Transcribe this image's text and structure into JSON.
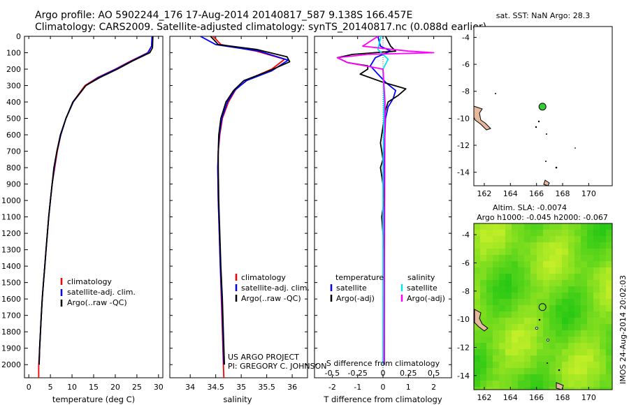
{
  "figure": {
    "title_line1": "Argo profile: AO 5902244_176 17-Aug-2014 20140817_587 9.138S 166.457E",
    "title_line2": "Climatology: CARS2009. Satellite-adjusted climatology: synTS_20140817.nc (0.088d earlier)",
    "credit_line1": "US ARGO PROJECT",
    "credit_line2": "PI: GREGORY C. JOHNSON",
    "imos_stamp": "IMOS 24-Aug-2014 20:02:03"
  },
  "colors": {
    "climatology": "#ff0000",
    "satellite": "#0000ff",
    "argo": "#000000",
    "satellite_s": "#00e5ee",
    "argo_s": "#ff00ff",
    "land": "#e6b89c",
    "argo_marker": "#33cc33"
  },
  "chart_data": [
    {
      "id": "temperature",
      "type": "line",
      "xlabel": "temperature (deg C)",
      "ylabel": "",
      "xlim": [
        -1,
        31
      ],
      "ylim": [
        2080,
        0
      ],
      "y_inverted": true,
      "xticks": [
        "0",
        "5",
        "10",
        "15",
        "20",
        "25",
        "30"
      ],
      "yticks": [
        "0",
        "100",
        "200",
        "300",
        "400",
        "500",
        "600",
        "700",
        "800",
        "900",
        "1000",
        "1100",
        "1200",
        "1300",
        "1400",
        "1500",
        "1600",
        "1700",
        "1800",
        "1900",
        "2000"
      ],
      "legend": [
        "climatology",
        "satellite-adj. clim.",
        "Argo(..raw -QC)"
      ],
      "series": [
        {
          "name": "climatology",
          "color": "red",
          "points": [
            [
              28.6,
              0
            ],
            [
              28.4,
              60
            ],
            [
              27.5,
              100
            ],
            [
              23.6,
              150
            ],
            [
              20,
              200
            ],
            [
              16,
              250
            ],
            [
              13,
              300
            ],
            [
              10.2,
              400
            ],
            [
              8.6,
              500
            ],
            [
              7.4,
              600
            ],
            [
              6.6,
              700
            ],
            [
              6,
              800
            ],
            [
              5.4,
              900
            ],
            [
              5,
              1000
            ],
            [
              4.6,
              1100
            ],
            [
              4.3,
              1200
            ],
            [
              4,
              1300
            ],
            [
              3.7,
              1400
            ],
            [
              3.4,
              1500
            ],
            [
              3.1,
              1600
            ],
            [
              2.9,
              1700
            ],
            [
              2.7,
              1800
            ],
            [
              2.5,
              1900
            ],
            [
              2.3,
              2000
            ],
            [
              2.3,
              2080
            ]
          ]
        },
        {
          "name": "satellite-adj. clim.",
          "color": "blue",
          "points": [
            [
              28.5,
              0
            ],
            [
              28.4,
              60
            ],
            [
              27.6,
              100
            ],
            [
              23.8,
              150
            ],
            [
              20.2,
              200
            ],
            [
              16.2,
              250
            ],
            [
              13.2,
              300
            ],
            [
              10.3,
              400
            ],
            [
              8.6,
              500
            ],
            [
              7.4,
              600
            ],
            [
              6.5,
              700
            ],
            [
              5.9,
              800
            ],
            [
              5.4,
              900
            ],
            [
              5,
              1000
            ],
            [
              4.6,
              1100
            ],
            [
              4.3,
              1200
            ],
            [
              4,
              1300
            ],
            [
              3.7,
              1400
            ],
            [
              3.4,
              1500
            ],
            [
              3.1,
              1600
            ],
            [
              2.9,
              1700
            ],
            [
              2.7,
              1800
            ],
            [
              2.5,
              1900
            ],
            [
              2.4,
              2000
            ]
          ]
        },
        {
          "name": "Argo(..raw -QC)",
          "color": "black",
          "points": [
            [
              28.7,
              0
            ],
            [
              28.6,
              70
            ],
            [
              28,
              100
            ],
            [
              24,
              150
            ],
            [
              20.5,
              200
            ],
            [
              16.5,
              250
            ],
            [
              13.2,
              300
            ],
            [
              10.2,
              400
            ],
            [
              8.6,
              500
            ],
            [
              7.3,
              600
            ],
            [
              6.5,
              700
            ],
            [
              5.8,
              800
            ],
            [
              5.4,
              900
            ],
            [
              5,
              1000
            ],
            [
              4.6,
              1100
            ],
            [
              4.3,
              1200
            ],
            [
              4,
              1300
            ],
            [
              3.7,
              1400
            ],
            [
              3.4,
              1500
            ],
            [
              3.1,
              1600
            ],
            [
              2.9,
              1700
            ],
            [
              2.7,
              1800
            ],
            [
              2.5,
              1900
            ],
            [
              2.4,
              2000
            ]
          ]
        }
      ]
    },
    {
      "id": "salinity",
      "type": "line",
      "xlabel": "salinity",
      "ylabel": "",
      "xlim": [
        33.6,
        36.3
      ],
      "ylim": [
        2080,
        0
      ],
      "y_inverted": true,
      "xticks": [
        "34",
        "34.5",
        "35",
        "35.5",
        "36"
      ],
      "legend": [
        "climatology",
        "satellite-adj. clim.",
        "Argo(..raw -QC)"
      ],
      "series": [
        {
          "name": "climatology",
          "color": "red",
          "points": [
            [
              34.45,
              0
            ],
            [
              34.6,
              50
            ],
            [
              35.3,
              90
            ],
            [
              35.85,
              140
            ],
            [
              35.6,
              200
            ],
            [
              35.15,
              260
            ],
            [
              34.9,
              320
            ],
            [
              34.75,
              400
            ],
            [
              34.63,
              500
            ],
            [
              34.58,
              600
            ],
            [
              34.55,
              700
            ],
            [
              34.54,
              800
            ],
            [
              34.55,
              1000
            ],
            [
              34.57,
              1200
            ],
            [
              34.59,
              1400
            ],
            [
              34.61,
              1600
            ],
            [
              34.63,
              1800
            ],
            [
              34.65,
              2000
            ],
            [
              34.66,
              2080
            ]
          ]
        },
        {
          "name": "satellite-adj. clim.",
          "color": "blue",
          "points": [
            [
              34.2,
              0
            ],
            [
              34.5,
              50
            ],
            [
              35.35,
              90
            ],
            [
              35.92,
              145
            ],
            [
              35.6,
              210
            ],
            [
              35.1,
              270
            ],
            [
              34.87,
              330
            ],
            [
              34.73,
              400
            ],
            [
              34.62,
              500
            ],
            [
              34.57,
              600
            ],
            [
              34.55,
              700
            ],
            [
              34.54,
              800
            ],
            [
              34.55,
              1000
            ],
            [
              34.57,
              1200
            ],
            [
              34.59,
              1400
            ],
            [
              34.62,
              1600
            ],
            [
              34.64,
              1800
            ],
            [
              34.66,
              2000
            ]
          ]
        },
        {
          "name": "Argo(..raw -QC)",
          "color": "black",
          "points": [
            [
              34.4,
              0
            ],
            [
              34.55,
              50
            ],
            [
              35.3,
              80
            ],
            [
              35.9,
              125
            ],
            [
              35.95,
              155
            ],
            [
              35.55,
              210
            ],
            [
              35.05,
              270
            ],
            [
              34.85,
              330
            ],
            [
              34.7,
              400
            ],
            [
              34.6,
              500
            ],
            [
              34.56,
              600
            ],
            [
              34.55,
              700
            ],
            [
              34.55,
              800
            ],
            [
              34.56,
              1000
            ],
            [
              34.58,
              1200
            ],
            [
              34.6,
              1400
            ],
            [
              34.63,
              1600
            ],
            [
              34.65,
              1800
            ],
            [
              34.67,
              2000
            ]
          ]
        }
      ]
    },
    {
      "id": "difference",
      "type": "line",
      "xlabel": "T difference from climatology",
      "xlabel2": "S difference from climatology",
      "xlim_T": [
        -2.7,
        2.7
      ],
      "xlim_S": [
        -0.675,
        0.675
      ],
      "ylim": [
        2080,
        0
      ],
      "y_inverted": true,
      "xticks_T": [
        "-2",
        "-1",
        "0",
        "1",
        "2"
      ],
      "xticks_S": [
        "-0.5",
        "-0.25",
        "0",
        "0.25",
        "0.5"
      ],
      "legend_heading_T": "temperature",
      "legend_heading_S": "salinity",
      "legend_T": [
        "satellite",
        "Argo(-adj)"
      ],
      "legend_S": [
        "satellite",
        "Argo(-adj)"
      ],
      "series": [
        {
          "name": "T satellite",
          "color": "blue",
          "axis": "T",
          "points": [
            [
              -0.2,
              0
            ],
            [
              -0.1,
              60
            ],
            [
              0.3,
              90
            ],
            [
              -0.3,
              130
            ],
            [
              -0.5,
              180
            ],
            [
              -0.2,
              230
            ],
            [
              0.1,
              280
            ],
            [
              0.5,
              330
            ],
            [
              0.4,
              380
            ],
            [
              0.2,
              430
            ],
            [
              0.1,
              500
            ],
            [
              0.05,
              700
            ],
            [
              0.05,
              1200
            ],
            [
              0.05,
              2000
            ]
          ]
        },
        {
          "name": "T Argo(-adj)",
          "color": "black",
          "axis": "T",
          "points": [
            [
              0.1,
              0
            ],
            [
              0.3,
              60
            ],
            [
              0.5,
              90
            ],
            [
              -1.2,
              110
            ],
            [
              -1.8,
              130
            ],
            [
              -1.4,
              160
            ],
            [
              -0.6,
              180
            ],
            [
              -0.6,
              200
            ],
            [
              -0.9,
              230
            ],
            [
              0,
              280
            ],
            [
              0.9,
              320
            ],
            [
              0.6,
              360
            ],
            [
              0.2,
              400
            ],
            [
              0.1,
              450
            ],
            [
              0.05,
              500
            ],
            [
              -0.1,
              650
            ],
            [
              0,
              750
            ],
            [
              -0.1,
              800
            ],
            [
              0,
              900
            ],
            [
              0.05,
              1000
            ],
            [
              -0.05,
              1100
            ],
            [
              0.05,
              1300
            ],
            [
              0.05,
              2000
            ]
          ]
        },
        {
          "name": "S satellite",
          "color": "cyan",
          "axis": "S",
          "points": [
            [
              -0.02,
              0
            ],
            [
              -0.05,
              80
            ],
            [
              0.05,
              140
            ],
            [
              0,
              200
            ],
            [
              0.01,
              400
            ],
            [
              0,
              800
            ],
            [
              0,
              2000
            ]
          ]
        },
        {
          "name": "S Argo(-adj)",
          "color": "magenta",
          "axis": "S",
          "points": [
            [
              -0.05,
              0
            ],
            [
              -0.2,
              60
            ],
            [
              0.25,
              90
            ],
            [
              0.5,
              100
            ],
            [
              -0.15,
              110
            ],
            [
              -0.45,
              130
            ],
            [
              -0.35,
              160
            ],
            [
              0,
              200
            ],
            [
              0.02,
              400
            ],
            [
              0.01,
              2000
            ]
          ]
        }
      ]
    },
    {
      "id": "sst-map",
      "type": "scatter",
      "title": "sat. SST: NaN Argo: 28.3",
      "xlim": [
        161.2,
        171.8
      ],
      "ylim": [
        -15,
        -3.2
      ],
      "xticks": [
        "162",
        "164",
        "166",
        "168",
        "170"
      ],
      "yticks": [
        "-4",
        "-6",
        "-8",
        "-10",
        "-12",
        "-14"
      ],
      "marker": {
        "x": 166.457,
        "y": -9.138
      }
    },
    {
      "id": "sla-map",
      "type": "heatmap",
      "title_line1": "Altim. SLA: -0.0074",
      "title_line2": "Argo h1000: -0.045 h2000: -0.067",
      "xlim": [
        161.2,
        171.8
      ],
      "ylim": [
        -15,
        -3.2
      ],
      "xticks": [
        "162",
        "164",
        "166",
        "168",
        "170"
      ],
      "yticks": [
        "-4",
        "-6",
        "-8",
        "-10",
        "-12",
        "-14"
      ],
      "marker": {
        "x": 166.457,
        "y": -9.138
      }
    }
  ]
}
